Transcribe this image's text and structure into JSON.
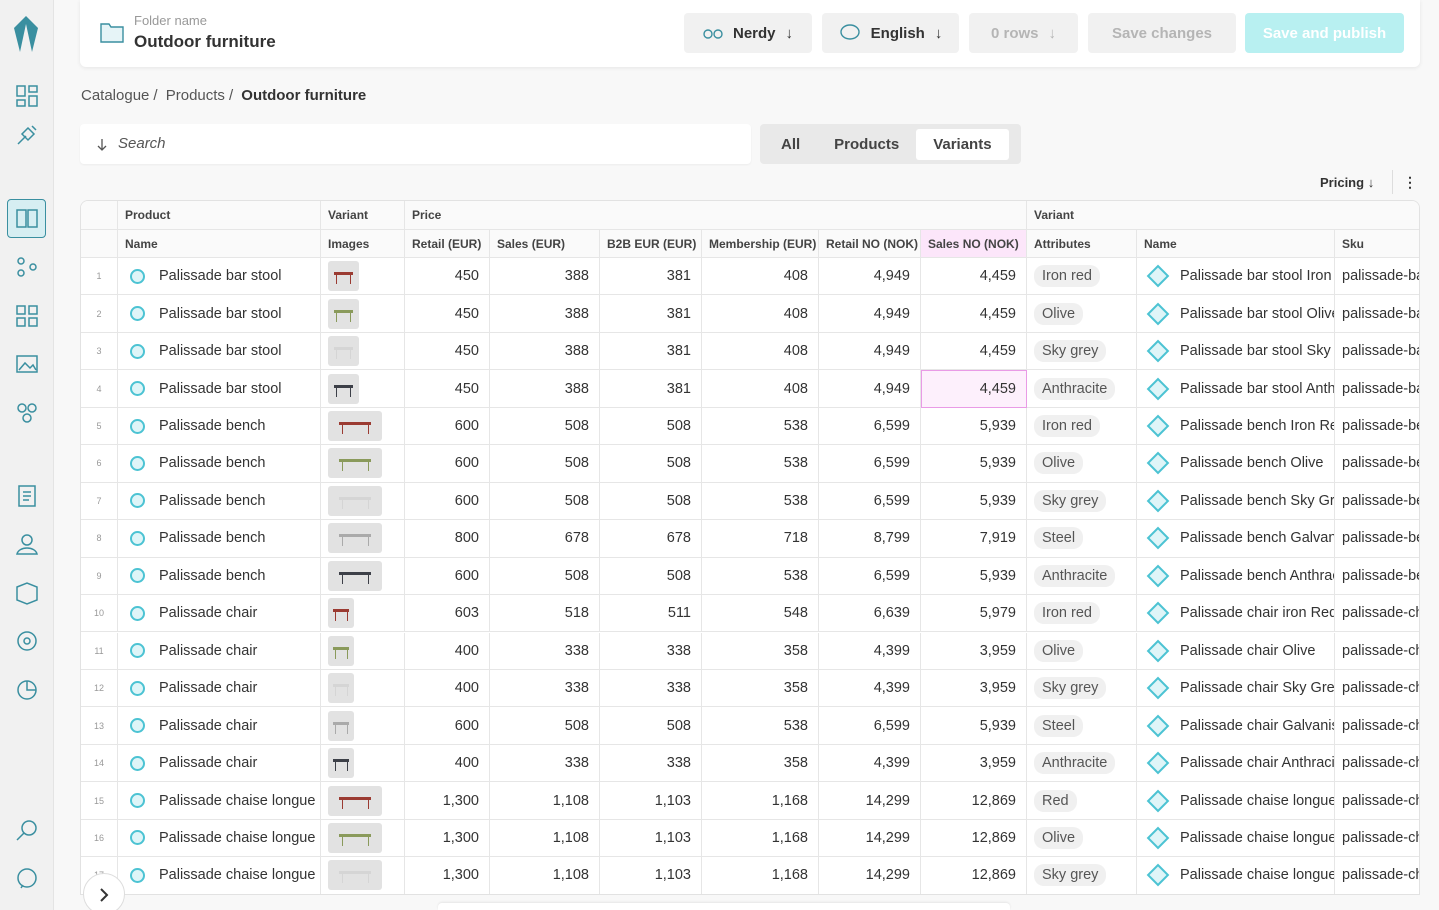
{
  "header": {
    "folder_label": "Folder name",
    "folder_name": "Outdoor furniture",
    "buttons": [
      "Nerdy",
      "English",
      "0 rows",
      "Save changes",
      "Save and publish"
    ]
  },
  "breadcrumb": {
    "items": [
      "Catalogue",
      "Products",
      "Outdoor furniture"
    ],
    "separator": "/"
  },
  "search": {
    "placeholder": "Search"
  },
  "tabs": [
    "All",
    "Products",
    "Variants"
  ],
  "toolbar": {
    "view": "Pricing"
  },
  "table": {
    "groups": [
      "Product",
      "Variant",
      "Price",
      "Variant"
    ],
    "columns": [
      "Name",
      "Images",
      "Retail (EUR)",
      "Sales (EUR)",
      "B2B EUR (EUR)",
      "Membership (EUR)",
      "Retail NO (NOK)",
      "Sales NO (NOK)",
      "Attributes",
      "Name",
      "Sku"
    ],
    "rows": [
      [
        "1",
        "Palissade bar stool",
        "450",
        "388",
        "381",
        "408",
        "4,949",
        "4,459",
        "Iron red",
        "Palissade bar stool Iron",
        "palissade-ba"
      ],
      [
        "2",
        "Palissade bar stool",
        "450",
        "388",
        "381",
        "408",
        "4,949",
        "4,459",
        "Olive",
        "Palissade bar stool Olive",
        "palissade-ba"
      ],
      [
        "3",
        "Palissade bar stool",
        "450",
        "388",
        "381",
        "408",
        "4,949",
        "4,459",
        "Sky grey",
        "Palissade bar stool Sky (",
        "palissade-ba"
      ],
      [
        "4",
        "Palissade bar stool",
        "450",
        "388",
        "381",
        "408",
        "4,949",
        "4,459",
        "Anthracite",
        "Palissade bar stool Anth",
        "palissade-ba"
      ],
      [
        "5",
        "Palissade bench",
        "600",
        "508",
        "508",
        "538",
        "6,599",
        "5,939",
        "Iron red",
        "Palissade bench Iron Re",
        "palissade-be"
      ],
      [
        "6",
        "Palissade bench",
        "600",
        "508",
        "508",
        "538",
        "6,599",
        "5,939",
        "Olive",
        "Palissade bench Olive",
        "palissade-be"
      ],
      [
        "7",
        "Palissade bench",
        "600",
        "508",
        "508",
        "538",
        "6,599",
        "5,939",
        "Sky grey",
        "Palissade bench Sky Gre",
        "palissade-be"
      ],
      [
        "8",
        "Palissade bench",
        "800",
        "678",
        "678",
        "718",
        "8,799",
        "7,919",
        "Steel",
        "Palissade bench Galvani",
        "palissade-be"
      ],
      [
        "9",
        "Palissade bench",
        "600",
        "508",
        "508",
        "538",
        "6,599",
        "5,939",
        "Anthracite",
        "Palissade bench Anthrac",
        "palissade-be"
      ],
      [
        "10",
        "Palissade chair",
        "603",
        "518",
        "511",
        "548",
        "6,639",
        "5,979",
        "Iron red",
        "Palissade chair iron Red",
        "palissade-ch"
      ],
      [
        "11",
        "Palissade chair",
        "400",
        "338",
        "338",
        "358",
        "4,399",
        "3,959",
        "Olive",
        "Palissade chair Olive",
        "palissade-ch"
      ],
      [
        "12",
        "Palissade chair",
        "400",
        "338",
        "338",
        "358",
        "4,399",
        "3,959",
        "Sky grey",
        "Palissade chair Sky Grey",
        "palissade-ch"
      ],
      [
        "13",
        "Palissade chair",
        "600",
        "508",
        "508",
        "538",
        "6,599",
        "5,939",
        "Steel",
        "Palissade chair Galvanis",
        "palissade-ch"
      ],
      [
        "14",
        "Palissade chair",
        "400",
        "338",
        "338",
        "358",
        "4,399",
        "3,959",
        "Anthracite",
        "Palissade chair Anthraci",
        "palissade-ch"
      ],
      [
        "15",
        "Palissade chaise longue",
        "1,300",
        "1,108",
        "1,103",
        "1,168",
        "14,299",
        "12,869",
        "Red",
        "Palissade chaise longue",
        "palissade-ch"
      ],
      [
        "16",
        "Palissade chaise longue",
        "1,300",
        "1,108",
        "1,103",
        "1,168",
        "14,299",
        "12,869",
        "Olive",
        "Palissade chaise longue",
        "palissade-ch"
      ],
      [
        "17",
        "Palissade chaise longue",
        "1,300",
        "1,108",
        "1,103",
        "1,168",
        "14,299",
        "12,869",
        "Sky grey",
        "Palissade chaise longue",
        "palissade-ch"
      ]
    ]
  }
}
